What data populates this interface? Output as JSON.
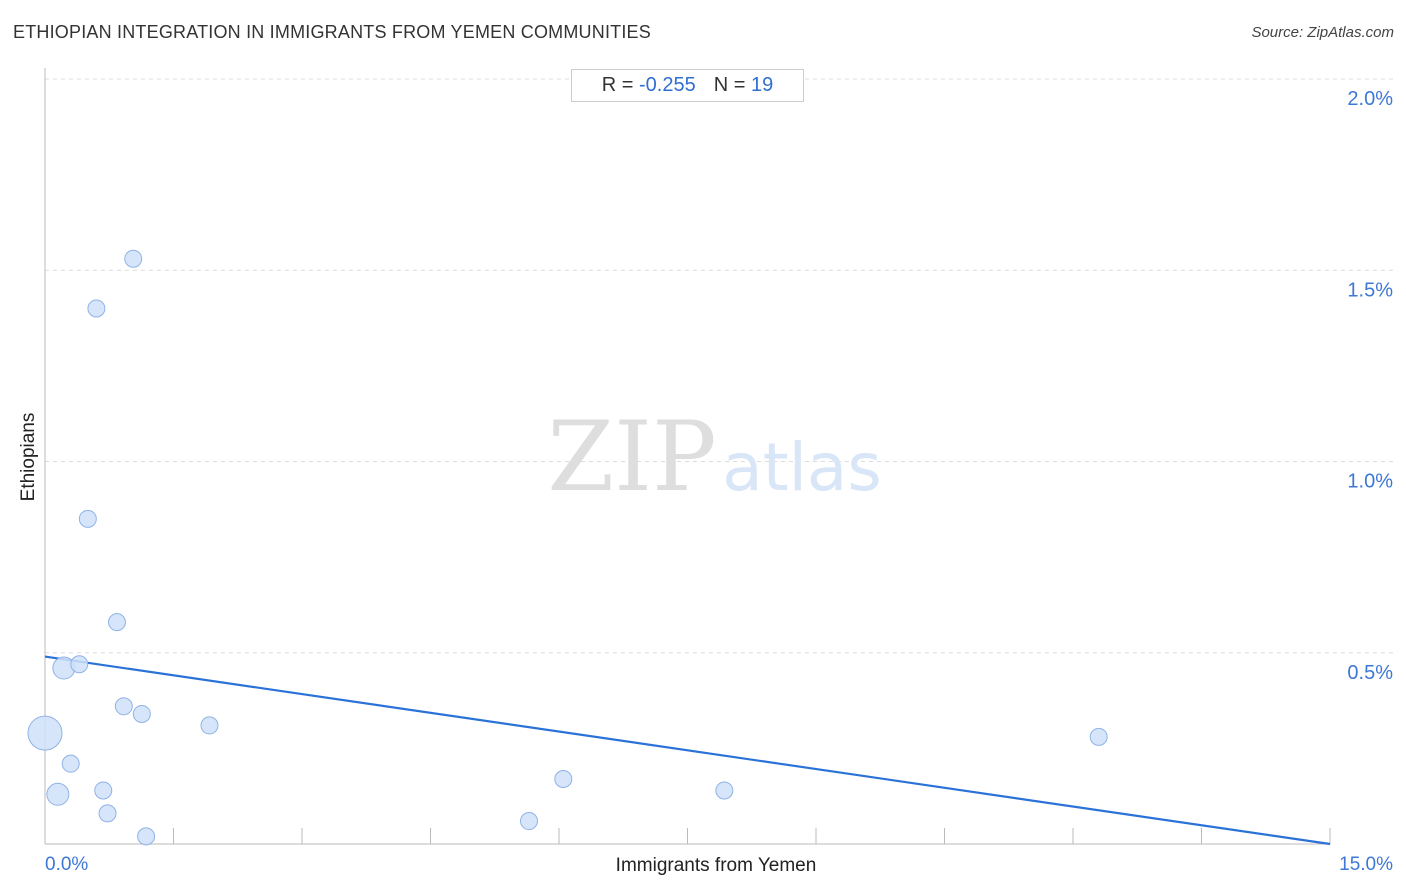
{
  "header": {
    "title": "ETHIOPIAN INTEGRATION IN IMMIGRANTS FROM YEMEN COMMUNITIES",
    "source": "Source: ZipAtlas.com"
  },
  "stats": {
    "r_label": "R =",
    "r_value": "-0.255",
    "n_label": "N =",
    "n_value": "19"
  },
  "watermark": {
    "zip": "ZIP",
    "atlas": "atlas"
  },
  "colors": {
    "accent": "#2f6fd0",
    "point_fill": "#cfe0f8",
    "point_stroke": "#8fb3e6",
    "trend": "#2a72d8",
    "grid": "#dcdcdc"
  },
  "chart_data": {
    "type": "scatter",
    "title": "ETHIOPIAN INTEGRATION IN IMMIGRANTS FROM YEMEN COMMUNITIES",
    "xlabel": "Immigrants from Yemen",
    "ylabel": "Ethiopians",
    "xlim": [
      0,
      15
    ],
    "ylim": [
      0,
      2.0
    ],
    "x_tick_labels": [
      "0.0%",
      "15.0%"
    ],
    "y_ticks": [
      0.5,
      1.0,
      1.5,
      2.0
    ],
    "y_tick_labels": [
      "0.5%",
      "1.0%",
      "1.5%",
      "2.0%"
    ],
    "grid": "horizontal dashed",
    "points": [
      {
        "x": 0.0,
        "y": 0.29,
        "size": "large"
      },
      {
        "x": 0.15,
        "y": 0.13,
        "size": "medium"
      },
      {
        "x": 0.22,
        "y": 0.46,
        "size": "medium"
      },
      {
        "x": 0.3,
        "y": 0.21,
        "size": "small"
      },
      {
        "x": 0.4,
        "y": 0.47,
        "size": "small"
      },
      {
        "x": 0.5,
        "y": 0.85,
        "size": "small"
      },
      {
        "x": 0.6,
        "y": 1.4,
        "size": "small"
      },
      {
        "x": 0.68,
        "y": 0.14,
        "size": "small"
      },
      {
        "x": 0.73,
        "y": 0.08,
        "size": "small"
      },
      {
        "x": 0.84,
        "y": 0.58,
        "size": "small"
      },
      {
        "x": 0.92,
        "y": 0.36,
        "size": "small"
      },
      {
        "x": 1.03,
        "y": 1.53,
        "size": "small"
      },
      {
        "x": 1.13,
        "y": 0.34,
        "size": "small"
      },
      {
        "x": 1.18,
        "y": 0.02,
        "size": "small"
      },
      {
        "x": 1.92,
        "y": 0.31,
        "size": "small"
      },
      {
        "x": 5.65,
        "y": 0.06,
        "size": "small"
      },
      {
        "x": 6.05,
        "y": 0.17,
        "size": "small"
      },
      {
        "x": 7.93,
        "y": 0.14,
        "size": "small"
      },
      {
        "x": 12.3,
        "y": 0.28,
        "size": "small"
      }
    ],
    "trendline": {
      "x": [
        0,
        15
      ],
      "y": [
        0.49,
        0.0
      ]
    }
  }
}
